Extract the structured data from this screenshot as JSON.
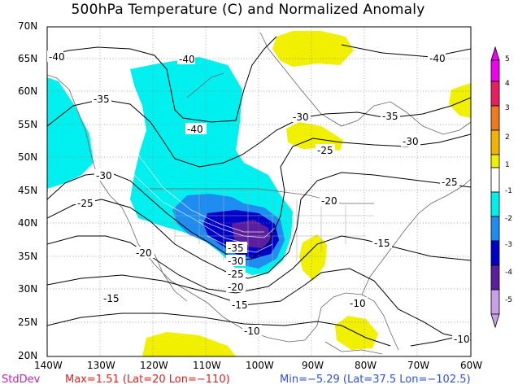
{
  "title": "500hPa Temperature (C) and Normalized Anomaly",
  "lat_labels": [
    "70N",
    "65N",
    "60N",
    "55N",
    "50N",
    "45N",
    "40N",
    "35N",
    "30N",
    "25N",
    "20N"
  ],
  "lon_labels": [
    "140W",
    "130W",
    "120W",
    "110W",
    "100W",
    "90W",
    "80W",
    "70W",
    "60W"
  ],
  "contour_labels": [
    "-40",
    "-40",
    "-40",
    "-40",
    "-35",
    "-35",
    "-30",
    "-30",
    "-30",
    "-30",
    "-25",
    "-25",
    "-25",
    "-25",
    "-20",
    "-20",
    "-20",
    "-15",
    "-15",
    "-15",
    "-10",
    "-10",
    "-10",
    "-35"
  ],
  "colorbar": {
    "labels": [
      "5",
      "4",
      "3",
      "2",
      "1",
      "-1",
      "-2",
      "-3",
      "-4",
      "-5"
    ],
    "colors": [
      "#f000f0",
      "#e81e60",
      "#f0781e",
      "#f0b400",
      "#f0f000",
      "#ffffff",
      "#00f0f0",
      "#1e8cf0",
      "#0000c8",
      "#5a1e9e",
      "#c8a0e6"
    ]
  },
  "footer": {
    "stddev": "StdDev",
    "max": "Max=1.51 (Lat=20 Lon=−110)",
    "min": "Min=−5.29 (Lat=37.5 Lon=−102.5)"
  }
}
